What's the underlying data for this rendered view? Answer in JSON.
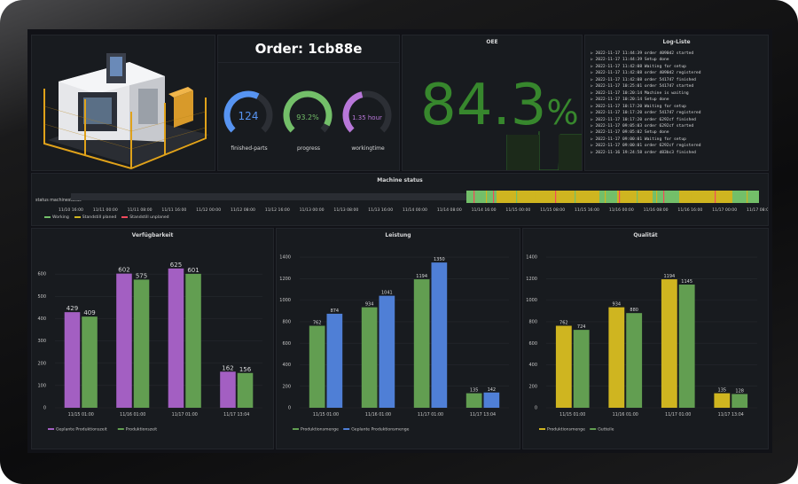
{
  "order": {
    "title": "Order: 1cb88e"
  },
  "gauges": [
    {
      "value": "124",
      "label": "finished-parts",
      "color": "#5794f2",
      "fraction": 0.6
    },
    {
      "value": "93.2%",
      "label": "progress",
      "color": "#73bf69",
      "fraction": 0.932
    },
    {
      "value": "1.35 hour",
      "label": "workingtime",
      "color": "#b877d9",
      "fraction": 0.45
    }
  ],
  "oee": {
    "title": "OEE",
    "number": "84.3",
    "unit": "%",
    "color": "#37872d"
  },
  "log": {
    "title": "Log-Liste",
    "lines": [
      "2022-11-17 11:44:39 order 4090d2 started",
      "2022-11-17 11:44:39 Setup done",
      "2022-11-17 11:42:08 Waiting for setup",
      "2022-11-17 11:42:08 order 4090d2 registered",
      "2022-11-17 11:42:08 order 541747 finished",
      "2022-11-17 10:25:01 order 541747 started",
      "2022-11-17 10:20:14 Machine is waiting",
      "2022-11-17 10:20:14 Setup done",
      "2022-11-17 10:17:20 Waiting for setup",
      "2022-11-17 10:17:20 order 541747 registered",
      "2022-11-17 10:17:20 order 6292cf finished",
      "2022-11-17 09:05:03 order 6292cf started",
      "2022-11-17 09:05:02 Setup done",
      "2022-11-17 09:00:01 Waiting for setup",
      "2022-11-17 09:00:01 order 6292cf registered",
      "2022-11-16 19:24:58 order d83bc3 finished"
    ]
  },
  "status": {
    "title": "Machine status",
    "row_label": "status machinestatus",
    "ticks": [
      "11/10 16:00",
      "11/11 00:00",
      "11/11 08:00",
      "11/11 16:00",
      "11/12 00:00",
      "11/12 08:00",
      "11/12 16:00",
      "11/13 00:00",
      "11/13 08:00",
      "11/13 16:00",
      "11/14 00:00",
      "11/14 08:00",
      "11/14 16:00",
      "11/15 00:00",
      "11/15 08:00",
      "11/15 16:00",
      "11/16 00:00",
      "11/16 08:00",
      "11/16 16:00",
      "11/17 00:00",
      "11/17 08:00"
    ],
    "legend": [
      {
        "name": "Working",
        "color": "#73bf69"
      },
      {
        "name": "Standstill planed",
        "color": "#cfb520"
      },
      {
        "name": "Standstill unplaned",
        "color": "#f2495c"
      }
    ]
  },
  "chart_data": [
    {
      "type": "bar",
      "title": "Verfügbarkeit",
      "categories": [
        "11/15 01:00",
        "11/16 01:00",
        "11/17 01:00",
        "11/17 13:04"
      ],
      "series": [
        {
          "name": "Geplante Produktionszeit",
          "color": "#a35fc2",
          "values": [
            429,
            602,
            625,
            162
          ]
        },
        {
          "name": "Produktionszeit",
          "color": "#629e51",
          "values": [
            409,
            575,
            601,
            156
          ]
        }
      ],
      "ylim": [
        0,
        700
      ],
      "yticks": [
        0,
        100,
        200,
        300,
        400,
        500,
        600
      ]
    },
    {
      "type": "bar",
      "title": "Leistung",
      "categories": [
        "11/15 01:00",
        "11/16 01:00",
        "11/17 01:00",
        "11/17 13:04"
      ],
      "series": [
        {
          "name": "Produktionsmenge",
          "color": "#629e51",
          "values": [
            762,
            934,
            1194,
            135
          ]
        },
        {
          "name": "Geplante Produktionsmenge",
          "color": "#4f7fd6",
          "values": [
            874,
            1041,
            1350,
            142
          ]
        }
      ],
      "ylim": [
        0,
        1450
      ],
      "yticks": [
        0,
        200,
        400,
        600,
        800,
        1000,
        1200,
        1400
      ]
    },
    {
      "type": "bar",
      "title": "Qualität",
      "categories": [
        "11/15 01:00",
        "11/16 01:00",
        "11/17 01:00",
        "11/17 13:04"
      ],
      "series": [
        {
          "name": "Produktionsmenge",
          "color": "#cfb520",
          "values": [
            762,
            934,
            1194,
            135
          ]
        },
        {
          "name": "Gutteile",
          "color": "#629e51",
          "values": [
            724,
            880,
            1145,
            128
          ]
        }
      ],
      "ylim": [
        0,
        1450
      ],
      "yticks": [
        0,
        200,
        400,
        600,
        800,
        1000,
        1200,
        1400
      ]
    }
  ]
}
